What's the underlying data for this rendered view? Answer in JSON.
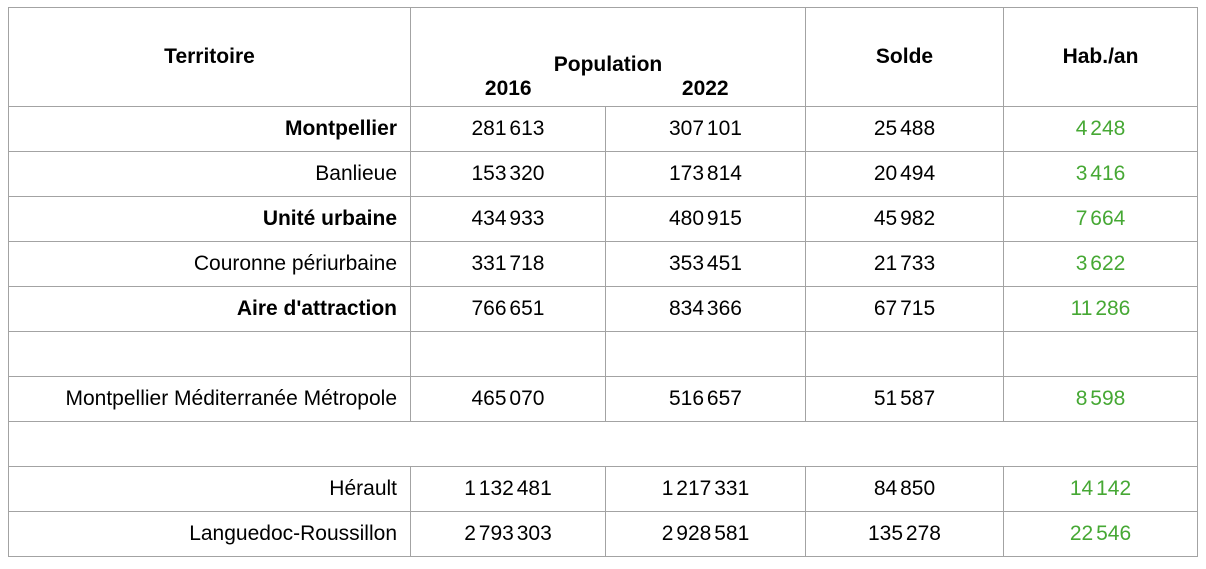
{
  "colors": {
    "grid": "#a3a3a3",
    "accent_green": "#46a834",
    "text": "#000000",
    "background": "#ffffff"
  },
  "table": {
    "header": {
      "territoire": "Territoire",
      "population": "Population",
      "year_2016": "2016",
      "year_2022": "2022",
      "solde": "Solde",
      "hab_an": "Hab./an"
    },
    "rows": [
      {
        "type": "data",
        "territoire": "Montpellier",
        "bold": true,
        "pop_2016": "281 613",
        "pop_2022": "307 101",
        "solde": "25 488",
        "hab_an": "4 248"
      },
      {
        "type": "data",
        "territoire": "Banlieue",
        "bold": false,
        "pop_2016": "153 320",
        "pop_2022": "173 814",
        "solde": "20 494",
        "hab_an": "3 416"
      },
      {
        "type": "data",
        "territoire": "Unité urbaine",
        "bold": true,
        "pop_2016": "434 933",
        "pop_2022": "480 915",
        "solde": "45 982",
        "hab_an": "7 664"
      },
      {
        "type": "data",
        "territoire": "Couronne périurbaine",
        "bold": false,
        "pop_2016": "331 718",
        "pop_2022": "353 451",
        "solde": "21 733",
        "hab_an": "3 622"
      },
      {
        "type": "data",
        "territoire": "Aire d'attraction",
        "bold": true,
        "pop_2016": "766 651",
        "pop_2022": "834 366",
        "solde": "67 715",
        "hab_an": "11 286"
      },
      {
        "type": "spacer",
        "bordered": true
      },
      {
        "type": "data",
        "territoire": "Montpellier Méditerranée Métropole",
        "bold": false,
        "pop_2016": "465 070",
        "pop_2022": "516 657",
        "solde": "51 587",
        "hab_an": "8 598"
      },
      {
        "type": "spacer",
        "bordered": false
      },
      {
        "type": "data",
        "territoire": "Hérault",
        "bold": false,
        "pop_2016": "1 132 481",
        "pop_2022": "1 217 331",
        "solde": "84 850",
        "hab_an": "14 142"
      },
      {
        "type": "data",
        "territoire": "Languedoc-Roussillon",
        "bold": false,
        "pop_2016": "2 793 303",
        "pop_2022": "2 928 581",
        "solde": "135 278",
        "hab_an": "22 546"
      }
    ]
  }
}
